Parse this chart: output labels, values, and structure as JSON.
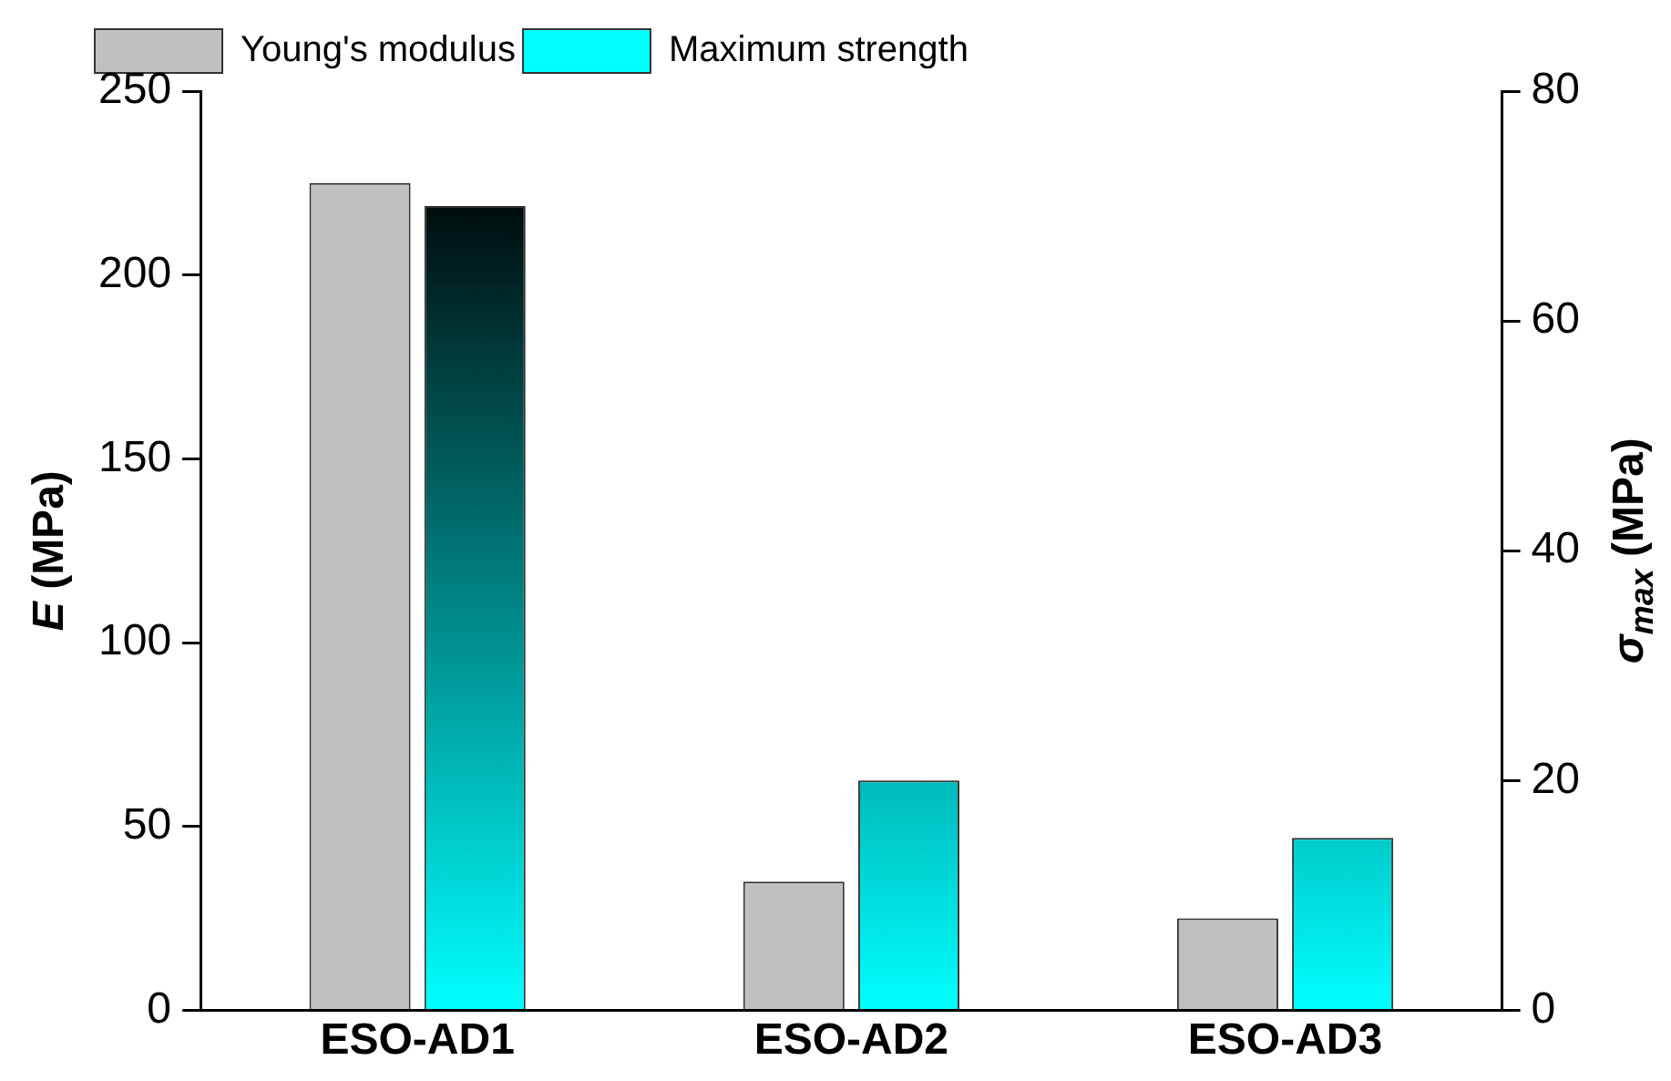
{
  "chart_data": {
    "type": "bar",
    "categories": [
      "ESO-AD1",
      "ESO-AD2",
      "ESO-AD3"
    ],
    "series": [
      {
        "name": "Young's modulus",
        "color": "#c0c0c0",
        "values": [
          225,
          35,
          25
        ]
      },
      {
        "name": "Maximum strength",
        "color": "#00ffff",
        "values": [
          70,
          20,
          15
        ],
        "axis": "y2"
      }
    ],
    "ylabel": "E (MPa)",
    "y2label": "σ$_{max}$ (MPa)",
    "ylim": [
      0,
      250
    ],
    "yticks": [
      0,
      50,
      100,
      150,
      200,
      250
    ],
    "y2lim": [
      0,
      80
    ],
    "y2ticks": [
      0,
      20,
      40,
      60,
      80
    ],
    "grid": false,
    "legend": "top left"
  }
}
